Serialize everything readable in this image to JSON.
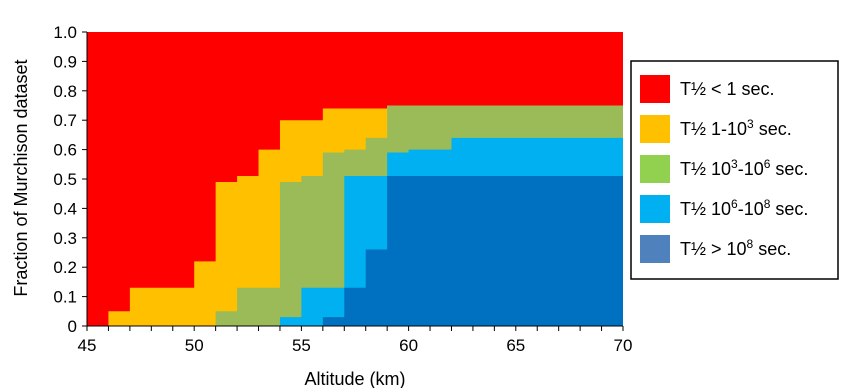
{
  "chart_data": {
    "type": "area",
    "stacking": "cumulative step fractions",
    "xlabel": "Altitude (km)",
    "ylabel": "Fraction of Murchison dataset",
    "xlim": [
      45,
      70
    ],
    "ylim": [
      0,
      1.0
    ],
    "x_ticks": [
      "45",
      "50",
      "55",
      "60",
      "65",
      "70"
    ],
    "y_ticks": [
      "0",
      "0.1",
      "0.2",
      "0.3",
      "0.4",
      "0.5",
      "0.6",
      "0.7",
      "0.8",
      "0.9",
      "1.0"
    ],
    "grid": false,
    "legend_position": "right",
    "altitude_bins": [
      45,
      46,
      47,
      48,
      49,
      50,
      51,
      52,
      53,
      54,
      55,
      56,
      57,
      58,
      59,
      60,
      61,
      62,
      63,
      64,
      65,
      66,
      67,
      68,
      69,
      70
    ],
    "series": [
      {
        "name": "T½ < 1 sec.",
        "color": "#ff0000",
        "cumulative_upper": [
          1,
          1,
          1,
          1,
          1,
          1,
          1,
          1,
          1,
          1,
          1,
          1,
          1,
          1,
          1,
          1,
          1,
          1,
          1,
          1,
          1,
          1,
          1,
          1,
          1
        ]
      },
      {
        "name": "T½ 1-10³ sec.",
        "color": "#ffc000",
        "cumulative_upper": [
          0,
          0.05,
          0.13,
          0.13,
          0.13,
          0.22,
          0.49,
          0.51,
          0.6,
          0.7,
          0.7,
          0.74,
          0.74,
          0.74,
          0.75,
          0.75,
          0.75,
          0.75,
          0.75,
          0.75,
          0.75,
          0.75,
          0.75,
          0.75,
          0.75
        ]
      },
      {
        "name": "T½ 10³-10⁶ sec.",
        "color": "#9bbb59",
        "cumulative_upper": [
          0,
          0,
          0,
          0,
          0,
          0,
          0.05,
          0.13,
          0.13,
          0.49,
          0.51,
          0.59,
          0.6,
          0.64,
          0.75,
          0.75,
          0.75,
          0.75,
          0.75,
          0.75,
          0.75,
          0.75,
          0.75,
          0.75,
          0.75
        ]
      },
      {
        "name": "T½ 10⁶-10⁸ sec.",
        "color": "#00b0f0",
        "cumulative_upper": [
          0,
          0,
          0,
          0,
          0,
          0,
          0,
          0,
          0,
          0.03,
          0.13,
          0.13,
          0.51,
          0.51,
          0.59,
          0.6,
          0.6,
          0.64,
          0.64,
          0.64,
          0.64,
          0.64,
          0.64,
          0.64,
          0.64
        ]
      },
      {
        "name": "T½ > 10⁸ sec.",
        "color": "#0070c0",
        "legend_color": "#4f81bd",
        "cumulative_upper": [
          0,
          0,
          0,
          0,
          0,
          0,
          0,
          0,
          0,
          0,
          0,
          0.03,
          0.13,
          0.26,
          0.51,
          0.51,
          0.51,
          0.51,
          0.51,
          0.51,
          0.51,
          0.51,
          0.51,
          0.51,
          0.51
        ]
      }
    ],
    "legend": [
      {
        "prefix": "T½ < 1 sec.",
        "sup": "",
        "suffix": "",
        "color": "#ff0000"
      },
      {
        "prefix": "T½ 1-10",
        "sup": "3",
        "suffix": " sec.",
        "color": "#ffc000"
      },
      {
        "prefix": "T½ 10",
        "sup": "3",
        "mid": "-10",
        "sup2": "6",
        "suffix": " sec.",
        "color": "#92d050"
      },
      {
        "prefix": "T½ 10",
        "sup": "6",
        "mid": "-10",
        "sup2": "8",
        "suffix": " sec.",
        "color": "#00b0f0"
      },
      {
        "prefix": "T½ > 10",
        "sup": "8",
        "suffix": " sec.",
        "color": "#4f81bd"
      }
    ]
  }
}
